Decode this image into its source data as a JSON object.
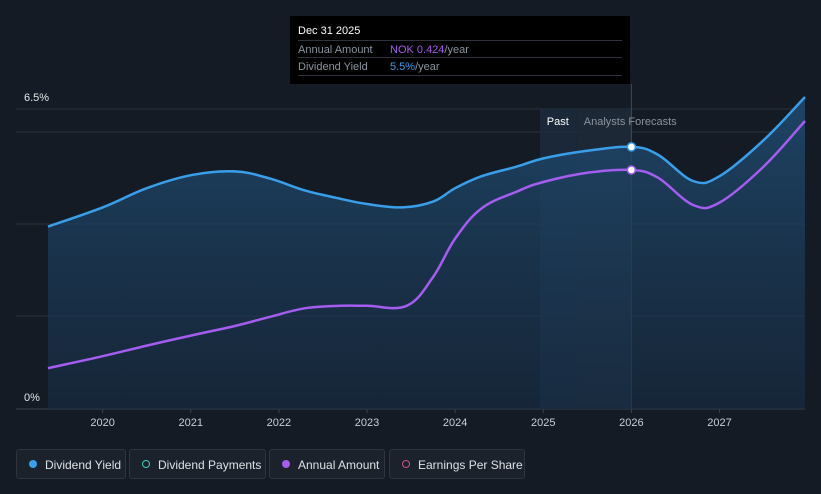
{
  "tooltip": {
    "date": "Dec 31 2025",
    "annual_amount_label": "Annual Amount",
    "annual_amount_value": "NOK 0.424",
    "annual_amount_unit": "/year",
    "dividend_yield_label": "Dividend Yield",
    "dividend_yield_value": "5.5%",
    "dividend_yield_unit": "/year"
  },
  "legend": [
    {
      "label": "Dividend Yield",
      "color": "#3a9fea",
      "style": "filled"
    },
    {
      "label": "Dividend Payments",
      "color": "#3fd0c0",
      "style": "hollow"
    },
    {
      "label": "Annual Amount",
      "color": "#a55cf0",
      "style": "filled"
    },
    {
      "label": "Earnings Per Share",
      "color": "#c94f8e",
      "style": "hollow"
    }
  ],
  "colors": {
    "background": "#151b24",
    "dividend_yield": "#3a9fea",
    "annual_amount": "#a55cf0",
    "grid": "#2a313b"
  },
  "chart_data": {
    "type": "line",
    "x_tick_labels": [
      "2020",
      "2021",
      "2022",
      "2023",
      "2024",
      "2025",
      "2026",
      "2027"
    ],
    "y_tick_labels": [
      "6.5%",
      "0%"
    ],
    "ylim": [
      0,
      6.5
    ],
    "xlim": [
      2019.38,
      2027.97
    ],
    "region_labels": {
      "past": "Past",
      "forecast": "Analysts Forecasts"
    },
    "past_end": 2025.38,
    "highlight_x": 2026.0,
    "grid": true,
    "series": [
      {
        "name": "Dividend Yield",
        "color": "#3a9fea",
        "fill": true,
        "points": [
          [
            2019.38,
            3.8
          ],
          [
            2020.0,
            4.2
          ],
          [
            2020.5,
            4.6
          ],
          [
            2021.0,
            4.87
          ],
          [
            2021.5,
            4.95
          ],
          [
            2021.9,
            4.8
          ],
          [
            2022.3,
            4.55
          ],
          [
            2022.7,
            4.38
          ],
          [
            2023.0,
            4.27
          ],
          [
            2023.4,
            4.2
          ],
          [
            2023.75,
            4.32
          ],
          [
            2024.0,
            4.6
          ],
          [
            2024.3,
            4.85
          ],
          [
            2024.7,
            5.05
          ],
          [
            2025.0,
            5.22
          ],
          [
            2025.5,
            5.38
          ],
          [
            2026.0,
            5.46
          ],
          [
            2026.3,
            5.3
          ],
          [
            2026.7,
            4.75
          ],
          [
            2027.0,
            4.85
          ],
          [
            2027.5,
            5.6
          ],
          [
            2027.97,
            6.5
          ]
        ]
      },
      {
        "name": "Annual Amount",
        "color": "#a55cf0",
        "fill": false,
        "points": [
          [
            2019.38,
            0.85
          ],
          [
            2020.0,
            1.1
          ],
          [
            2020.5,
            1.32
          ],
          [
            2021.0,
            1.53
          ],
          [
            2021.5,
            1.73
          ],
          [
            2021.9,
            1.92
          ],
          [
            2022.3,
            2.1
          ],
          [
            2022.7,
            2.15
          ],
          [
            2023.0,
            2.15
          ],
          [
            2023.45,
            2.15
          ],
          [
            2023.75,
            2.75
          ],
          [
            2024.0,
            3.55
          ],
          [
            2024.3,
            4.18
          ],
          [
            2024.7,
            4.53
          ],
          [
            2025.0,
            4.73
          ],
          [
            2025.5,
            4.92
          ],
          [
            2026.0,
            4.98
          ],
          [
            2026.3,
            4.82
          ],
          [
            2026.7,
            4.25
          ],
          [
            2027.0,
            4.3
          ],
          [
            2027.5,
            5.05
          ],
          [
            2027.97,
            6.0
          ]
        ]
      }
    ]
  }
}
